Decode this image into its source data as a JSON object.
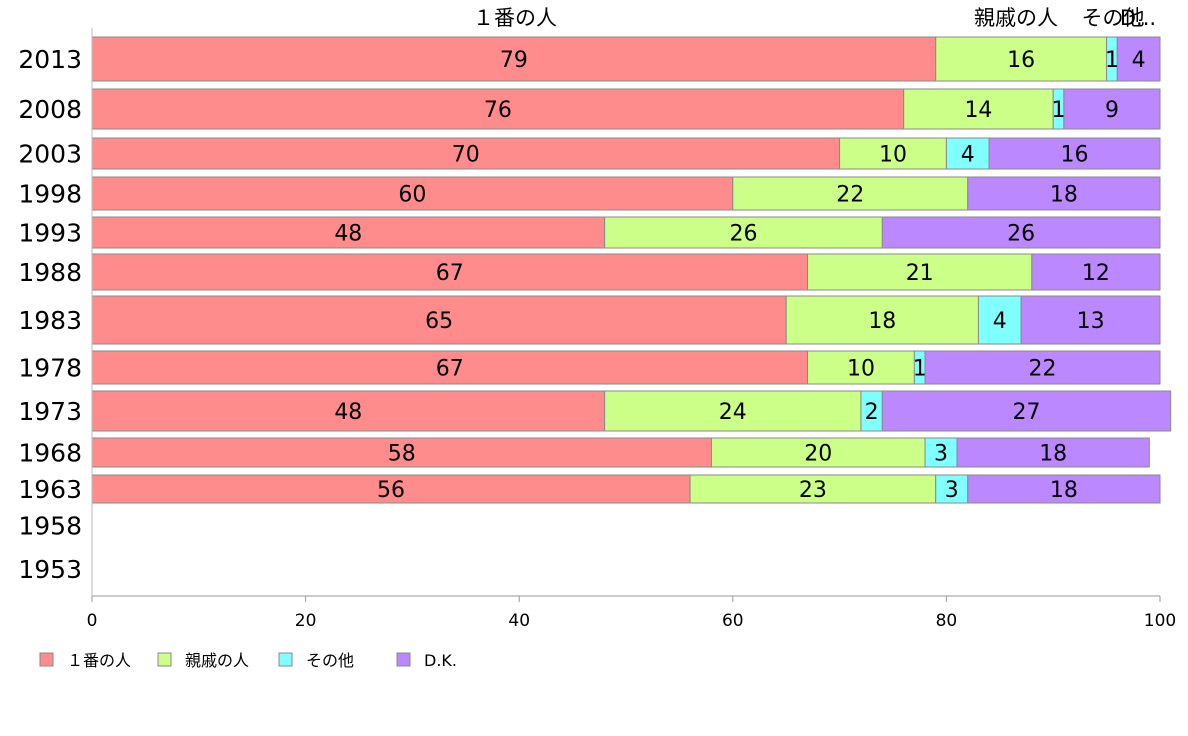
{
  "chart_data": {
    "type": "bar",
    "orientation": "horizontal",
    "stacked": true,
    "xlim": [
      0,
      100
    ],
    "x_ticks": [
      "0",
      "20",
      "40",
      "60",
      "80",
      "100"
    ],
    "categories": [
      "2013",
      "2008",
      "2003",
      "1998",
      "1993",
      "1988",
      "1983",
      "1978",
      "1973",
      "1968",
      "1963",
      "1958",
      "1953"
    ],
    "series": [
      {
        "name": "１番の人",
        "header_label": "１番の人",
        "color": "#ff8c8c",
        "values": [
          79,
          76,
          70,
          60,
          48,
          67,
          65,
          67,
          48,
          58,
          56,
          null,
          null
        ]
      },
      {
        "name": "親戚の人",
        "header_label": "親戚の人",
        "color": "#ccff88",
        "values": [
          16,
          14,
          10,
          22,
          26,
          21,
          18,
          10,
          24,
          20,
          23,
          null,
          null
        ]
      },
      {
        "name": "その他",
        "header_label": "その他",
        "color": "#80ffff",
        "values": [
          1,
          1,
          4,
          0,
          0,
          0,
          4,
          1,
          2,
          3,
          3,
          null,
          null
        ]
      },
      {
        "name": "D.K.",
        "header_label": "D...",
        "color": "#bb88ff",
        "values": [
          4,
          9,
          16,
          18,
          26,
          12,
          13,
          22,
          27,
          18,
          18,
          null,
          null
        ]
      }
    ],
    "legend_placement": "bottom-left",
    "grid": false
  }
}
